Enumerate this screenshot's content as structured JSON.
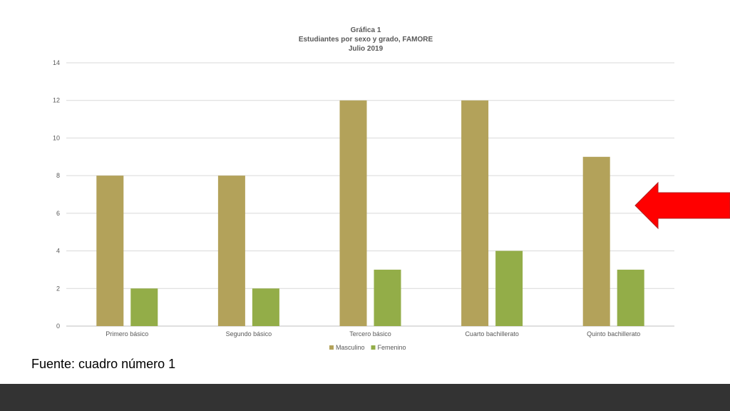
{
  "chart_data": {
    "type": "bar",
    "title": [
      "Gráfica 1",
      "Estudiantes por sexo y grado, FAMORE",
      "Julio 2019"
    ],
    "categories": [
      "Primero básico",
      "Segundo básico",
      "Tercero básico",
      "Cuarto bachillerato",
      "Quinto bachillerato"
    ],
    "series": [
      {
        "name": "Masculino",
        "values": [
          8,
          8,
          12,
          12,
          9
        ],
        "color": "#B3A25A"
      },
      {
        "name": "Femenino",
        "values": [
          2,
          2,
          3,
          4,
          3
        ],
        "color": "#93AD48"
      }
    ],
    "ylim": [
      0,
      14
    ],
    "yticks": [
      "0",
      "2",
      "4",
      "6",
      "8",
      "10",
      "12",
      "14"
    ],
    "grid": true,
    "legend": "bottom"
  },
  "annotation": {
    "arrow_color": "#FF0000",
    "arrow_direction": "left"
  },
  "source_note": "Fuente: cuadro número 1",
  "footer": {
    "color": "#333333"
  }
}
